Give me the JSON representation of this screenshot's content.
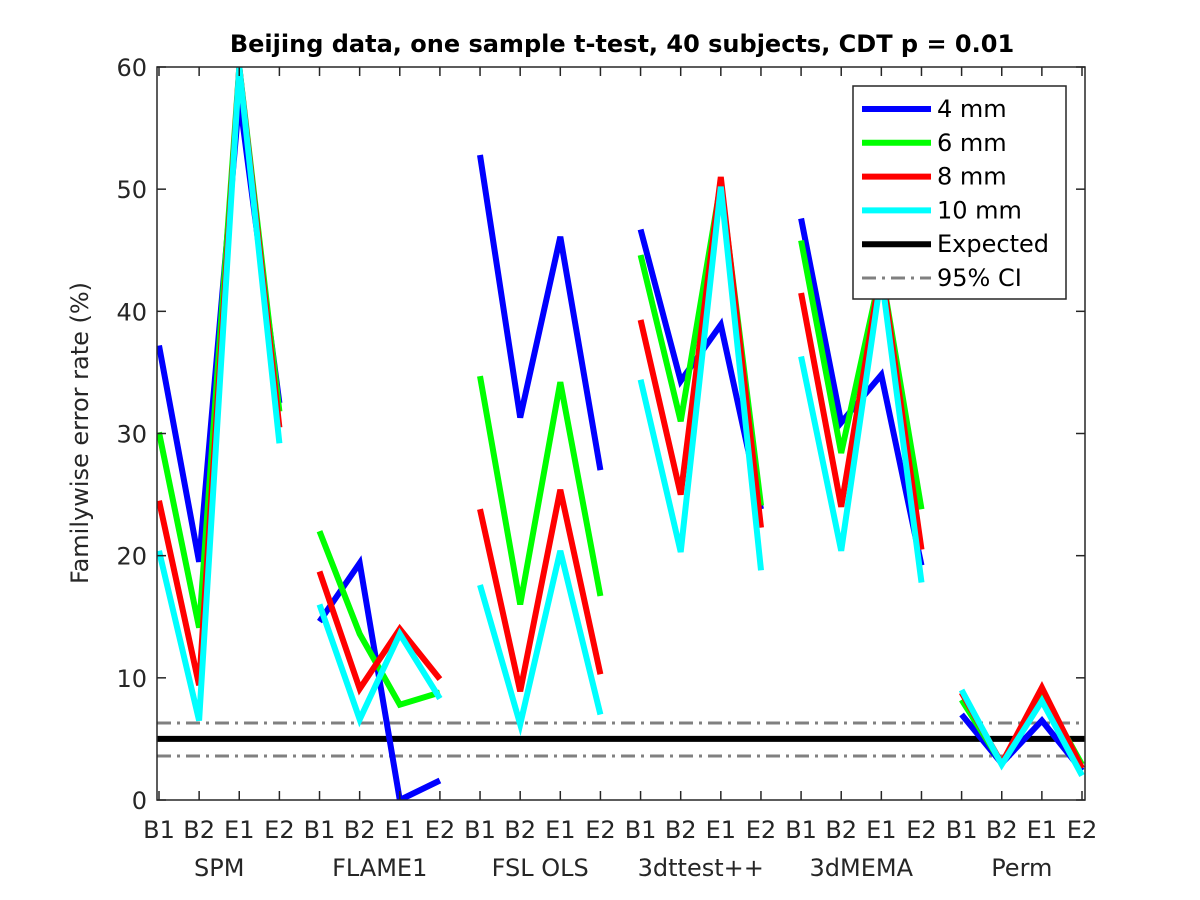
{
  "chart_data": {
    "type": "line",
    "title": "Beijing data, one sample t-test, 40 subjects, CDT p = 0.01",
    "xlabel": "",
    "ylabel": "Familywise error rate (%)",
    "ylim": [
      0,
      60
    ],
    "yticks": [
      0,
      10,
      20,
      30,
      40,
      50,
      60
    ],
    "grid": false,
    "legend_position": "top-right",
    "categories": [
      "B1",
      "B2",
      "E1",
      "E2",
      "B1",
      "B2",
      "E1",
      "E2",
      "B1",
      "B2",
      "E1",
      "E2",
      "B1",
      "B2",
      "E1",
      "E2",
      "B1",
      "B2",
      "E1",
      "E2",
      "B1",
      "B2",
      "E1",
      "E2"
    ],
    "groups": [
      "SPM",
      "FLAME1",
      "FSL OLS",
      "3dttest++",
      "3dMEMA",
      "Perm"
    ],
    "series": [
      {
        "name": "4 mm",
        "color": "#0000ff",
        "values": [
          37.2,
          19.5,
          57.5,
          32.5,
          14.6,
          19.4,
          0.0,
          1.6,
          52.8,
          31.3,
          46.1,
          27.0,
          46.7,
          34.3,
          38.9,
          23.8,
          47.6,
          30.9,
          34.8,
          19.2,
          7.0,
          3.0,
          6.5,
          2.4
        ]
      },
      {
        "name": "6 mm",
        "color": "#00ff00",
        "values": [
          30.1,
          14.1,
          60.0,
          31.8,
          22.0,
          13.6,
          7.8,
          8.8,
          34.7,
          16.0,
          34.2,
          16.7,
          44.6,
          31.0,
          50.5,
          24.1,
          45.8,
          28.4,
          43.4,
          23.8,
          8.2,
          3.0,
          8.8,
          2.9
        ]
      },
      {
        "name": "8 mm",
        "color": "#ff0000",
        "values": [
          24.5,
          9.4,
          60.0,
          30.5,
          18.7,
          9.1,
          14.0,
          9.9,
          23.8,
          8.9,
          25.4,
          10.3,
          39.3,
          25.0,
          51.0,
          22.3,
          41.5,
          24.0,
          43.6,
          20.5,
          8.8,
          3.0,
          9.2,
          2.6
        ]
      },
      {
        "name": "10 mm",
        "color": "#00ffff",
        "values": [
          20.4,
          6.5,
          60.0,
          29.2,
          16.0,
          6.6,
          13.6,
          8.3,
          17.6,
          6.2,
          20.4,
          7.0,
          34.4,
          20.3,
          50.2,
          18.8,
          36.3,
          20.4,
          43.0,
          17.8,
          9.0,
          2.9,
          8.1,
          2.0
        ]
      }
    ],
    "reference_lines": [
      {
        "name": "Expected",
        "color": "#000000",
        "value": 5.0,
        "style": "solid"
      },
      {
        "name": "95% CI",
        "color": "#808080",
        "values": [
          3.6,
          6.3
        ],
        "style": "dashdot"
      }
    ]
  }
}
